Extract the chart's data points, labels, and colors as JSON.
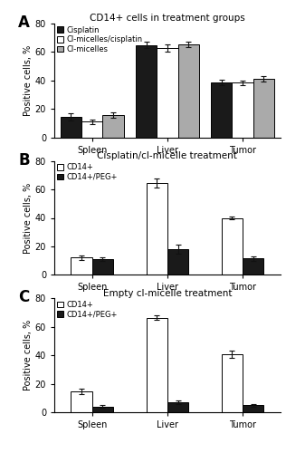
{
  "panel_A": {
    "title": "CD14+ cells in treatment groups",
    "categories": [
      "Spleen",
      "Liver",
      "Tumor"
    ],
    "series": [
      {
        "label": "Cisplatin",
        "color": "#1a1a1a",
        "values": [
          14.5,
          65.0,
          38.5
        ],
        "errors": [
          2.5,
          2.0,
          2.0
        ]
      },
      {
        "label": "Cl-micelles/cisplatin",
        "color": "#ffffff",
        "values": [
          11.0,
          63.0,
          38.5
        ],
        "errors": [
          1.5,
          2.5,
          1.5
        ]
      },
      {
        "label": "Cl-micelles",
        "color": "#aaaaaa",
        "values": [
          15.5,
          65.5,
          41.0
        ],
        "errors": [
          2.0,
          2.0,
          2.0
        ]
      }
    ],
    "ylim": [
      0,
      80
    ],
    "yticks": [
      0,
      20,
      40,
      60,
      80
    ],
    "ylabel": "Positive cells, %"
  },
  "panel_B": {
    "title": "Cisplatin/cl-micelle treatment",
    "categories": [
      "Spleen",
      "Liver",
      "Tumor"
    ],
    "series": [
      {
        "label": "CD14+",
        "color": "#ffffff",
        "values": [
          12.0,
          64.5,
          40.0
        ],
        "errors": [
          1.5,
          3.0,
          1.0
        ]
      },
      {
        "label": "CD14+/PEG+",
        "color": "#1a1a1a",
        "values": [
          11.0,
          18.0,
          11.5
        ],
        "errors": [
          1.5,
          3.0,
          1.5
        ]
      }
    ],
    "ylim": [
      0,
      80
    ],
    "yticks": [
      0,
      20,
      40,
      60,
      80
    ],
    "ylabel": "Positive cells, %"
  },
  "panel_C": {
    "title": "Empty cl-micelle treatment",
    "categories": [
      "Spleen",
      "Liver",
      "Tumor"
    ],
    "series": [
      {
        "label": "CD14+",
        "color": "#ffffff",
        "values": [
          14.5,
          66.5,
          41.0
        ],
        "errors": [
          2.0,
          1.5,
          2.5
        ]
      },
      {
        "label": "CD14+/PEG+",
        "color": "#1a1a1a",
        "values": [
          4.0,
          7.0,
          5.0
        ],
        "errors": [
          1.0,
          1.5,
          1.0
        ]
      }
    ],
    "ylim": [
      0,
      80
    ],
    "yticks": [
      0,
      20,
      40,
      60,
      80
    ],
    "ylabel": "Positive cells, %"
  },
  "bar_width": 0.28,
  "edgecolor": "#000000",
  "capsize": 2,
  "label_fontsize": 7,
  "tick_fontsize": 7,
  "title_fontsize": 7.5,
  "panel_label_fontsize": 12,
  "panel_labels": [
    "A",
    "B",
    "C"
  ],
  "legend_fontsize": 6.0,
  "background_color": "#ffffff"
}
